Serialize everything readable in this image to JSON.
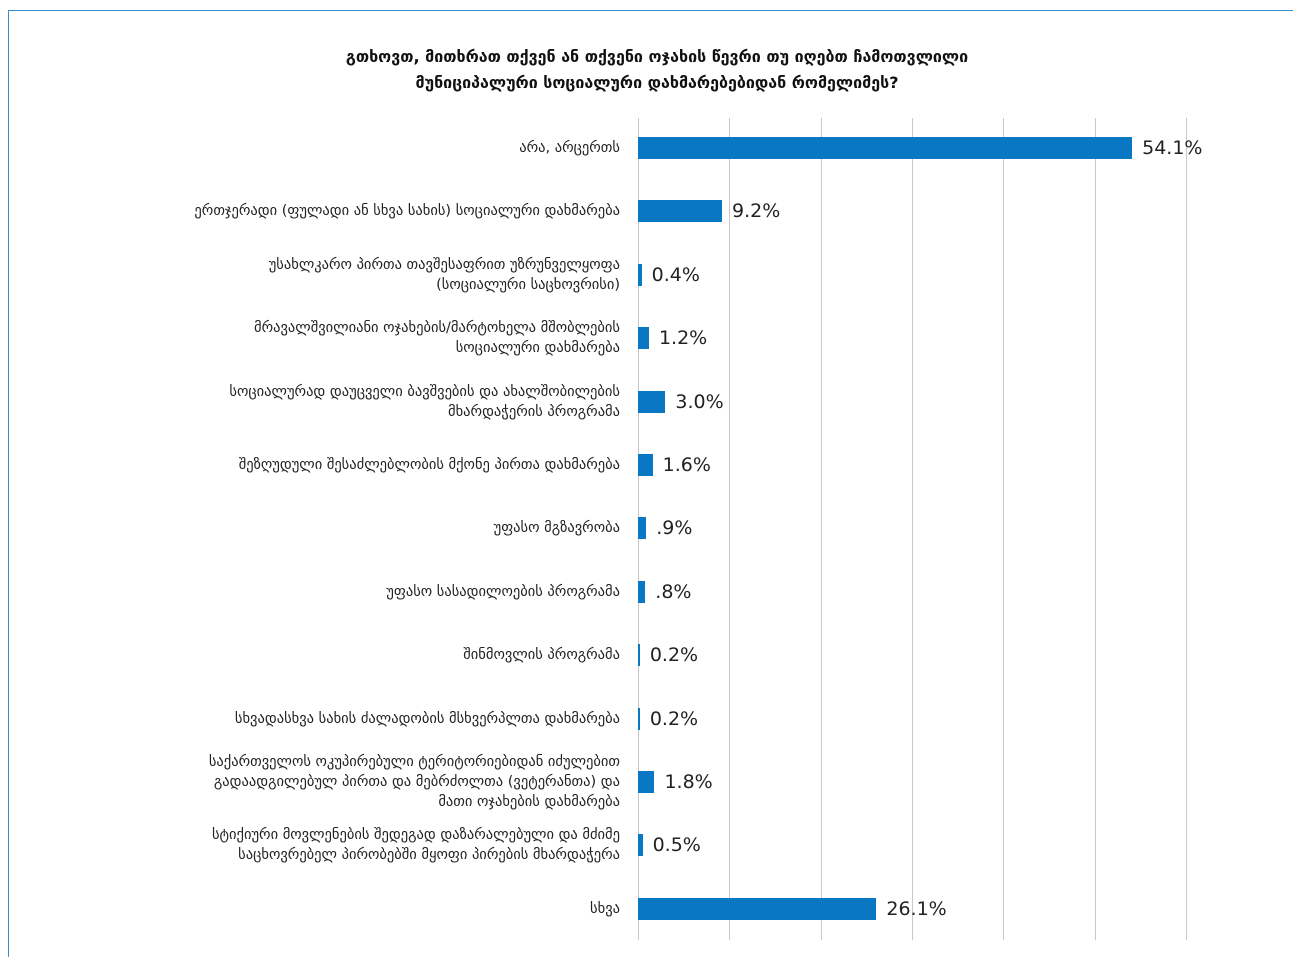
{
  "chart_data": {
    "type": "bar",
    "orientation": "horizontal",
    "title": "გთხოვთ, მითხრათ თქვენ ან თქვენი ოჯახის წევრი თუ იღებთ ჩამოთვლილი\nმუნიციპალური სოციალური დახმარებებიდან რომელიმეს?",
    "categories": [
      "არა, არცერთს",
      "ერთჯერადი (ფულადი ან სხვა სახის) სოციალური დახმარება",
      "უსახლკარო პირთა თავშესაფრით უზრუნველყოფა\n(სოციალური საცხოვრისი)",
      "მრავალშვილიანი ოჯახების/მარტოხელა მშობლების\nსოციალური დახმარება",
      "სოციალურად დაუცველი ბავშვების და ახალშობილების\nმხარდაჭერის პროგრამა",
      "შეზღუდული შესაძლებლობის მქონე პირთა დახმარება",
      "უფასო მგზავრობა",
      "უფასო სასადილოების პროგრამა",
      "შინმოვლის პროგრამა",
      "სხვადასხვა სახის ძალადობის მსხვერპლთა დახმარება",
      "საქართველოს ოკუპირებული ტერიტორიებიდან იძულებით\nგადაადგილებულ პირთა და მებრძოლთა (ვეტერანთა) და\nმათი ოჯახების დახმარება",
      "სტიქიური მოვლენების შედეგად დაზარალებული და მძიმე\nსაცხოვრებელ პირობებში მყოფი პირების მხარდაჭერა",
      "სხვა"
    ],
    "values": [
      54.1,
      9.2,
      0.4,
      1.2,
      3.0,
      1.6,
      0.9,
      0.8,
      0.2,
      0.2,
      1.8,
      0.5,
      26.1
    ],
    "value_labels": [
      "54.1%",
      "9.2%",
      "0.4%",
      "1.2%",
      "3.0%",
      "1.6%",
      ".9%",
      ".8%",
      "0.2%",
      "0.2%",
      "1.8%",
      "0.5%",
      "26.1%"
    ],
    "color": "#0a77c4",
    "xlim": [
      0,
      60
    ],
    "xticks": [
      0,
      10,
      20,
      30,
      40,
      50,
      60
    ],
    "grid": true
  }
}
